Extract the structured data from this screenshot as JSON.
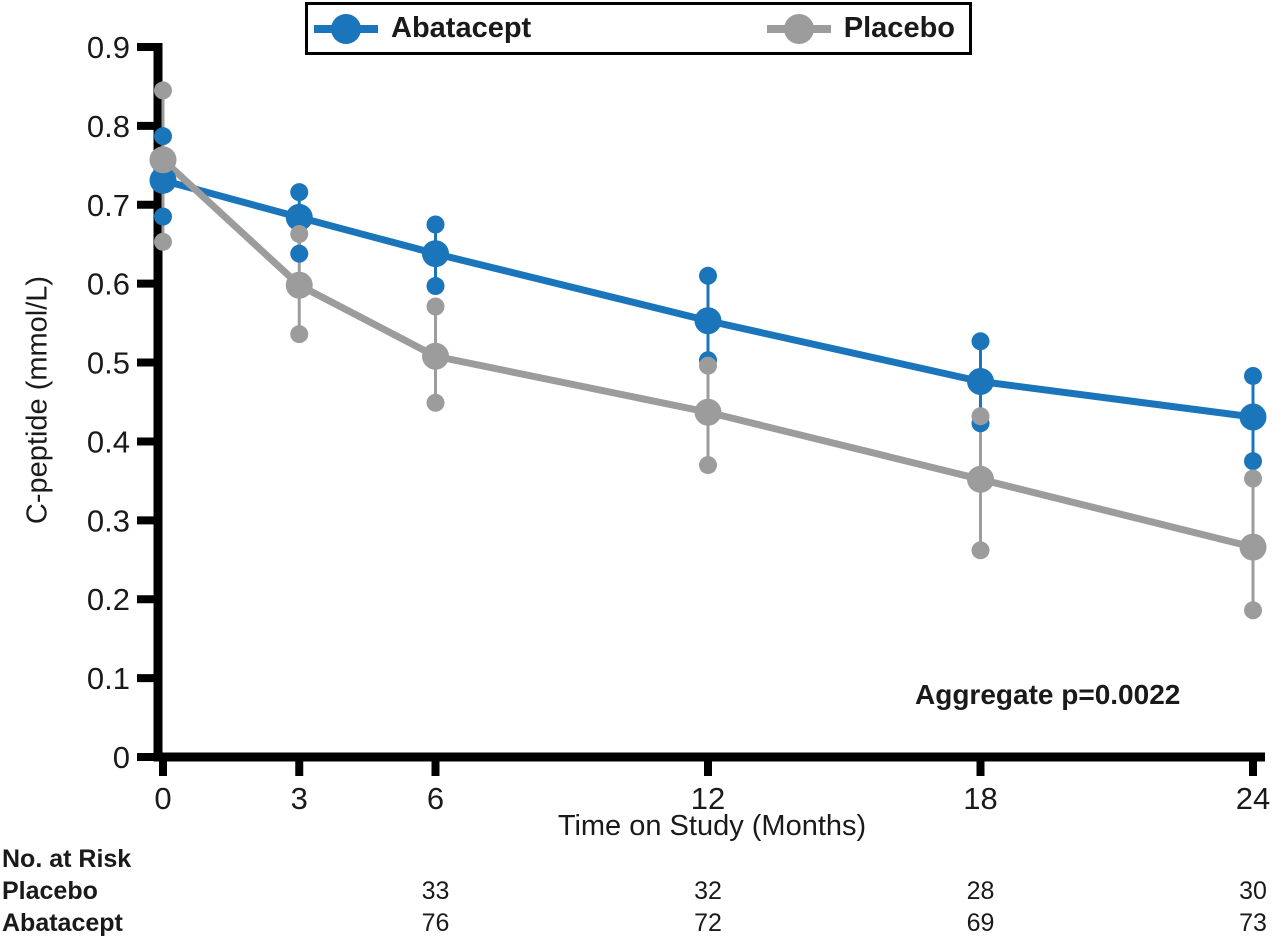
{
  "colors": {
    "abatacept": "#1b75bb",
    "placebo": "#9c9c9c",
    "axis": "#000000",
    "text": "#1a1a1a"
  },
  "legend": {
    "items": [
      {
        "label": "Abatacept",
        "color": "#1b75bb"
      },
      {
        "label": "Placebo",
        "color": "#9c9c9c"
      }
    ]
  },
  "chart_data": {
    "type": "line",
    "title": "",
    "xlabel": "Time on Study (Months)",
    "ylabel": "C-peptide (mmol/L)",
    "xlim": [
      0,
      24
    ],
    "ylim": [
      0,
      0.9
    ],
    "x": [
      0,
      3,
      6,
      12,
      18,
      24
    ],
    "x_tick_labels": [
      "0",
      "3",
      "6",
      "12",
      "18",
      "24"
    ],
    "y_ticks": [
      0,
      0.1,
      0.2,
      0.3,
      0.4,
      0.5,
      0.6,
      0.7,
      0.8,
      0.9
    ],
    "y_tick_labels": [
      "0",
      "0.1",
      "0.2",
      "0.3",
      "0.4",
      "0.5",
      "0.6",
      "0.7",
      "0.8",
      "0.9"
    ],
    "grid": false,
    "legend_position": "top",
    "annotation": "Aggregate p=0.0022",
    "series": [
      {
        "name": "Abatacept",
        "color": "#1b75bb",
        "means": [
          0.731,
          0.684,
          0.638,
          0.553,
          0.476,
          0.431
        ],
        "upper": [
          0.787,
          0.716,
          0.675,
          0.61,
          0.527,
          0.483
        ],
        "lower": [
          0.685,
          0.638,
          0.597,
          0.503,
          0.423,
          0.375
        ]
      },
      {
        "name": "Placebo",
        "color": "#9c9c9c",
        "means": [
          0.757,
          0.598,
          0.508,
          0.437,
          0.352,
          0.266
        ],
        "upper": [
          0.845,
          0.663,
          0.571,
          0.496,
          0.432,
          0.353
        ],
        "lower": [
          0.653,
          0.536,
          0.449,
          0.37,
          0.262,
          0.186
        ]
      }
    ]
  },
  "risk_table": {
    "title": "No. at Risk",
    "months": [
      6,
      12,
      18,
      24
    ],
    "rows": [
      {
        "label": "Placebo",
        "values": [
          "33",
          "32",
          "28",
          "30"
        ]
      },
      {
        "label": "Abatacept",
        "values": [
          "76",
          "72",
          "69",
          "73"
        ]
      }
    ]
  }
}
